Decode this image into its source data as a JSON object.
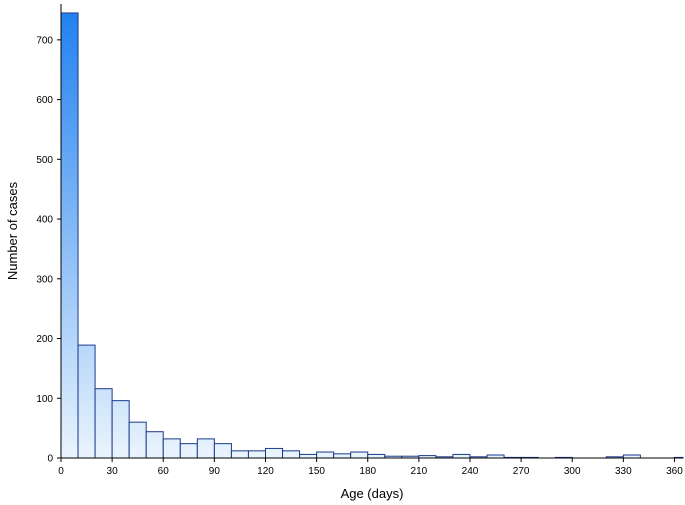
{
  "chart_data": {
    "type": "bar",
    "title": "",
    "xlabel": "Age (days)",
    "ylabel": "Number of cases",
    "bin_width": 10,
    "bin_starts": [
      0,
      10,
      20,
      30,
      40,
      50,
      60,
      70,
      80,
      90,
      100,
      110,
      120,
      130,
      140,
      150,
      160,
      170,
      180,
      190,
      200,
      210,
      220,
      230,
      240,
      250,
      260,
      270,
      280,
      290,
      300,
      310,
      320,
      330,
      340,
      350,
      360
    ],
    "values": [
      745,
      189,
      116,
      96,
      60,
      44,
      32,
      24,
      32,
      24,
      12,
      12,
      16,
      12,
      6,
      10,
      7,
      10,
      6,
      3,
      3,
      4,
      2,
      6,
      2,
      5,
      1,
      1,
      0,
      1,
      0,
      0,
      2,
      5,
      0,
      0,
      1
    ],
    "xlim": [
      0,
      365
    ],
    "ylim": [
      0,
      760
    ],
    "x_ticks": [
      0,
      30,
      60,
      90,
      120,
      150,
      180,
      210,
      240,
      270,
      300,
      330,
      360
    ],
    "y_ticks": [
      0,
      100,
      200,
      300,
      400,
      500,
      600,
      700
    ],
    "grid": false,
    "colors": {
      "bar_top": "#1e7ff0",
      "bar_bottom": "#eaf4fd",
      "bar_edge": "#1a3a8a"
    }
  }
}
